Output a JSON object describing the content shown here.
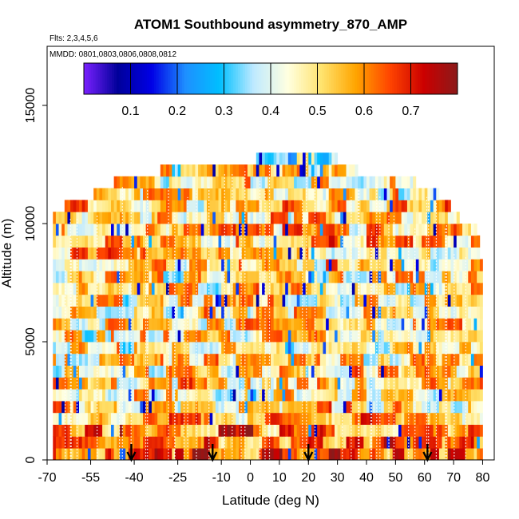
{
  "chart_data": {
    "type": "heatmap",
    "title": "ATOM1 Southbound asymmetry_870_AMP",
    "subtitle_flights": "Flts: 2,3,4,5,6",
    "subtitle_dates": "MMDD: 0801,0803,0806,0808,0812",
    "xlabel": "Latitude (deg N)",
    "ylabel": "Altitude (m)",
    "xlim": [
      -70,
      84
    ],
    "ylim": [
      0,
      17500
    ],
    "x_tick_labels": [
      "-70",
      "-55",
      "-40",
      "-25",
      "-10",
      "0",
      "10",
      "20",
      "30",
      "40",
      "50",
      "60",
      "70",
      "80"
    ],
    "x_tick_values": [
      -70,
      -55,
      -40,
      -25,
      -10,
      0,
      10,
      20,
      30,
      40,
      50,
      60,
      70,
      80
    ],
    "y_tick_labels": [
      "0",
      "5000",
      "10000",
      "15000"
    ],
    "y_tick_values": [
      0,
      5000,
      10000,
      15000
    ],
    "colorbar": {
      "range": [
        0.0,
        0.8
      ],
      "tick_labels": [
        "0.1",
        "0.2",
        "0.3",
        "0.4",
        "0.5",
        "0.6",
        "0.7"
      ],
      "tick_values": [
        0.1,
        0.2,
        0.3,
        0.4,
        0.5,
        0.6,
        0.7
      ],
      "colors": [
        "#7b21ff",
        "#00009a",
        "#0000e6",
        "#1e90ff",
        "#00bfff",
        "#bfeaff",
        "#ffffe0",
        "#ffe36e",
        "#ffa500",
        "#ff4500",
        "#cc0000",
        "#8b1a1a"
      ]
    },
    "coverage": {
      "lat_range": [
        -68,
        80
      ],
      "altitude_top_profile": [
        {
          "lat": -68,
          "alt": 10400
        },
        {
          "lat": -60,
          "alt": 10600
        },
        {
          "lat": -50,
          "alt": 11300
        },
        {
          "lat": -42,
          "alt": 11900
        },
        {
          "lat": -20,
          "alt": 12100
        },
        {
          "lat": 0,
          "alt": 12400
        },
        {
          "lat": 10,
          "alt": 12900
        },
        {
          "lat": 24,
          "alt": 12900
        },
        {
          "lat": 30,
          "alt": 12500
        },
        {
          "lat": 40,
          "alt": 11800
        },
        {
          "lat": 55,
          "alt": 11600
        },
        {
          "lat": 67,
          "alt": 10900
        },
        {
          "lat": 72,
          "alt": 10000
        },
        {
          "lat": 78,
          "alt": 9600
        },
        {
          "lat": 80,
          "alt": 8000
        }
      ],
      "altitude_levels_m": [
        250,
        750,
        1250,
        1750,
        2250,
        2750,
        3250,
        3750,
        4250,
        4750,
        5250,
        5750,
        6250,
        6750,
        7250,
        7750,
        8250,
        8750,
        9250,
        9750,
        10250,
        10750,
        11250,
        11750,
        12250,
        12750
      ],
      "typical_value_by_level": [
        0.66,
        0.64,
        0.62,
        0.55,
        0.52,
        0.5,
        0.52,
        0.5,
        0.48,
        0.47,
        0.48,
        0.5,
        0.5,
        0.49,
        0.48,
        0.5,
        0.52,
        0.53,
        0.55,
        0.53,
        0.52,
        0.52,
        0.5,
        0.5,
        0.46,
        0.38
      ]
    },
    "sonde_arrows_lat": [
      -41,
      -13,
      20,
      61
    ]
  }
}
